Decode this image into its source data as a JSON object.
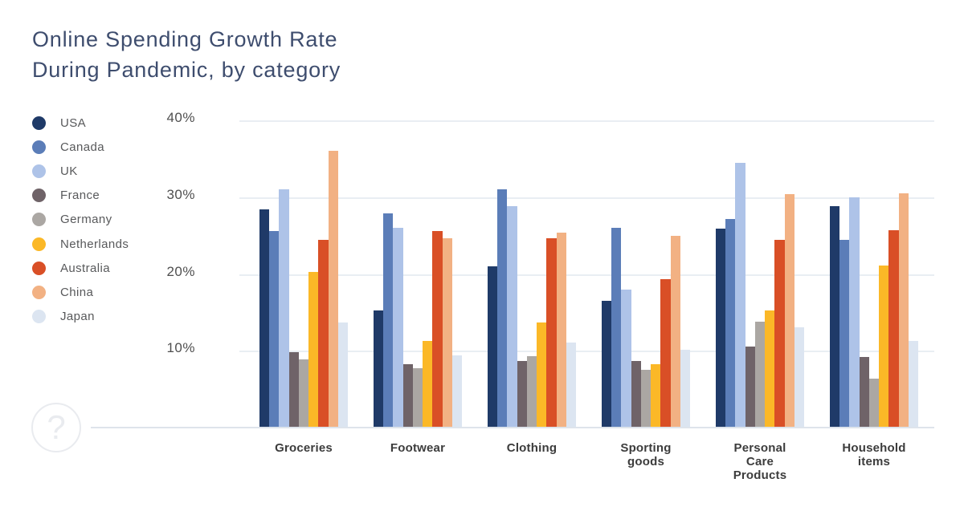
{
  "header": {
    "title_line1": "Online Spending Growth Rate",
    "title_line2": "During Pandemic, by category"
  },
  "help": {
    "icon": "question-mark-icon",
    "glyph": "?"
  },
  "chart_data": {
    "type": "bar",
    "title": "Online Spending Growth Rate During Pandemic, by category",
    "xlabel": "",
    "ylabel": "",
    "ylim": [
      0,
      40
    ],
    "yticks": [
      40,
      30,
      20,
      10
    ],
    "ytick_suffix": "%",
    "grid": "horizontal",
    "legend_position": "left",
    "categories": [
      "Groceries",
      "Footwear",
      "Clothing",
      "Sporting goods",
      "Personal Care Products",
      "Household items"
    ],
    "series": [
      {
        "name": "USA",
        "color": "#1f3a68",
        "values": [
          28.3,
          15.2,
          20.9,
          16.4,
          25.8,
          28.7
        ]
      },
      {
        "name": "Canada",
        "color": "#5b7db8",
        "values": [
          25.5,
          27.8,
          30.9,
          25.9,
          27.1,
          24.3
        ]
      },
      {
        "name": "UK",
        "color": "#aec3e8",
        "values": [
          30.9,
          25.9,
          28.7,
          17.9,
          34.4,
          29.9
        ]
      },
      {
        "name": "France",
        "color": "#6f6368",
        "values": [
          9.7,
          8.1,
          8.6,
          8.6,
          10.5,
          9.1
        ]
      },
      {
        "name": "Germany",
        "color": "#aba7a3",
        "values": [
          8.8,
          7.6,
          9.2,
          7.4,
          13.7,
          6.3
        ]
      },
      {
        "name": "Netherlands",
        "color": "#fbb827",
        "values": [
          20.2,
          11.2,
          13.6,
          8.1,
          15.2,
          21.0
        ]
      },
      {
        "name": "Australia",
        "color": "#d94f26",
        "values": [
          24.3,
          25.5,
          24.6,
          19.2,
          24.3,
          25.6
        ]
      },
      {
        "name": "China",
        "color": "#f2b183",
        "values": [
          35.9,
          24.6,
          25.3,
          24.9,
          30.3,
          30.4
        ]
      },
      {
        "name": "Japan",
        "color": "#dce5f1",
        "values": [
          13.6,
          9.3,
          11.0,
          10.0,
          13.0,
          11.2
        ]
      }
    ]
  }
}
